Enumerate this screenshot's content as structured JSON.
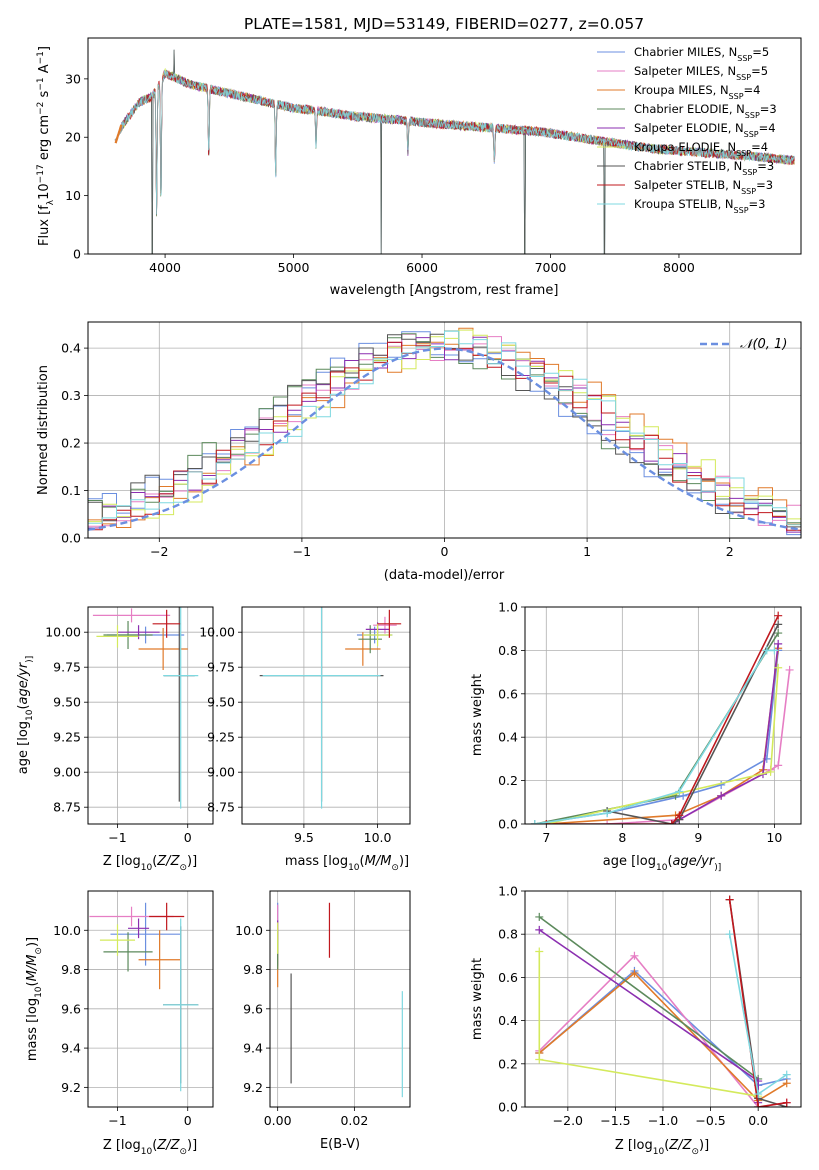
{
  "colors": {
    "chabrier_miles": "#6b8fe0",
    "salpeter_miles": "#e67ec4",
    "kroupa_miles": "#e07a2a",
    "chabrier_elodie": "#5c8a5c",
    "salpeter_elodie": "#8b2fb0",
    "kroupa_elodie": "#d4ea5c",
    "chabrier_stelib": "#555555",
    "salpeter_stelib": "#c0181e",
    "kroupa_stelib": "#7fd8e0",
    "gauss": "#6b8fe0"
  },
  "chart_data": [
    {
      "id": "spectrum",
      "type": "line",
      "title": "PLATE=1581, MJD=53149, FIBERID=0277, z=0.057",
      "xlabel": "wavelength [Angstrom, rest frame]",
      "ylabel_parts": [
        "Flux [f",
        "λ",
        "10",
        "−17",
        " erg cm",
        "−2",
        " s",
        "−1",
        " A",
        "−1",
        "]"
      ],
      "xlim": [
        3400,
        8950
      ],
      "ylim": [
        0,
        37
      ],
      "xticks": [
        "4000",
        "5000",
        "6000",
        "7000",
        "8000"
      ],
      "yticks": [
        "0",
        "10",
        "20",
        "30"
      ],
      "continuum": {
        "x": [
          3600,
          3700,
          3800,
          3900,
          4000,
          4100,
          4200,
          4400,
          4600,
          4800,
          5000,
          5200,
          5500,
          5800,
          6000,
          6300,
          6600,
          6900,
          7200,
          7500,
          7800,
          8100,
          8400,
          8700,
          8900
        ],
        "y": [
          20,
          23,
          26,
          27,
          31,
          30,
          29,
          28,
          27,
          26,
          25,
          24.5,
          23.5,
          23,
          22.5,
          22,
          21.5,
          21,
          20,
          19,
          18,
          17.5,
          17,
          16.5,
          16
        ]
      },
      "absorption_dips": [
        [
          3934,
          4
        ],
        [
          3968,
          6
        ],
        [
          4340,
          15
        ],
        [
          4861,
          12
        ],
        [
          5175,
          18
        ],
        [
          5890,
          17
        ],
        [
          6563,
          15
        ]
      ],
      "outlier_spikes": [
        [
          5683,
          0
        ],
        [
          6800,
          0
        ],
        [
          7420,
          0
        ],
        [
          3900,
          0
        ],
        [
          4070,
          35
        ]
      ],
      "legend": [
        {
          "label": "Chabrier MILES, N",
          "sub": "SSP",
          "tail": "=5",
          "color_key": "chabrier_miles"
        },
        {
          "label": "Salpeter MILES, N",
          "sub": "SSP",
          "tail": "=5",
          "color_key": "salpeter_miles"
        },
        {
          "label": "Kroupa MILES, N",
          "sub": "SSP",
          "tail": "=4",
          "color_key": "kroupa_miles"
        },
        {
          "label": "Chabrier ELODIE, N",
          "sub": "SSP",
          "tail": "=3",
          "color_key": "chabrier_elodie"
        },
        {
          "label": "Salpeter ELODIE, N",
          "sub": "SSP",
          "tail": "=4",
          "color_key": "salpeter_elodie"
        },
        {
          "label": "Kroupa ELODIE, N",
          "sub": "SSP",
          "tail": "=4",
          "color_key": "kroupa_elodie"
        },
        {
          "label": "Chabrier STELIB, N",
          "sub": "SSP",
          "tail": "=3",
          "color_key": "chabrier_stelib"
        },
        {
          "label": "Salpeter STELIB, N",
          "sub": "SSP",
          "tail": "=3",
          "color_key": "salpeter_stelib"
        },
        {
          "label": "Kroupa STELIB, N",
          "sub": "SSP",
          "tail": "=3",
          "color_key": "kroupa_stelib"
        }
      ]
    },
    {
      "id": "residuals",
      "type": "line",
      "xlabel": "(data-model)/error",
      "ylabel": "Normed distribution",
      "xlim": [
        -2.5,
        2.5
      ],
      "ylim": [
        0,
        0.455
      ],
      "xticks": [
        -2,
        -1,
        0,
        1,
        2
      ],
      "xtick_labels": [
        "−2",
        "−1",
        "0",
        "1",
        "2"
      ],
      "yticks": [
        0,
        0.1,
        0.2,
        0.3,
        0.4
      ],
      "ytick_labels": [
        "0.0",
        "0.1",
        "0.2",
        "0.3",
        "0.4"
      ],
      "grid": true,
      "bin_width": 0.1,
      "gaussian_legend": "𝒩(0, 1)",
      "gaussian": {
        "mean": 0,
        "sigma": 1
      }
    },
    {
      "id": "age_vs_Z",
      "type": "scatter",
      "xlabel_parts": [
        "Z [log",
        "10",
        "(",
        "Z/Z",
        "⊙",
        ")]"
      ],
      "ylabel_parts": [
        "age  [log",
        "10",
        "(",
        "age/yr",
        ")]"
      ],
      "xlim": [
        -1.42,
        0.36
      ],
      "ylim": [
        8.63,
        10.18
      ],
      "xticks": [
        -1,
        0
      ],
      "xtick_labels": [
        "−1",
        "0"
      ],
      "yticks": [
        8.75,
        9.0,
        9.25,
        9.5,
        9.75,
        10.0
      ],
      "ytick_labels": [
        "8.75",
        "9.00",
        "9.25",
        "9.50",
        "9.75",
        "10.00"
      ],
      "points": [
        {
          "c": "chabrier_miles",
          "x": -0.6,
          "y": 9.98,
          "xe": 0.55,
          "ye": 0.06
        },
        {
          "c": "salpeter_miles",
          "x": -0.8,
          "y": 10.12,
          "xe": 0.55,
          "ye": 0.05
        },
        {
          "c": "kroupa_miles",
          "x": -0.35,
          "y": 9.88,
          "xe": 0.35,
          "ye": 0.15
        },
        {
          "c": "chabrier_elodie",
          "x": -0.85,
          "y": 9.98,
          "xe": 0.35,
          "ye": 0.1
        },
        {
          "c": "salpeter_elodie",
          "x": -0.7,
          "y": 10.0,
          "xe": 0.3,
          "ye": 0.05
        },
        {
          "c": "kroupa_elodie",
          "x": -1.0,
          "y": 9.97,
          "xe": 0.3,
          "ye": 0.08
        },
        {
          "c": "chabrier_stelib",
          "x": -0.12,
          "y": 9.69,
          "xe": 0.22,
          "ye": 0.9
        },
        {
          "c": "salpeter_stelib",
          "x": -0.3,
          "y": 10.06,
          "xe": 0.2,
          "ye": 0.1
        },
        {
          "c": "kroupa_stelib",
          "x": -0.1,
          "y": 9.69,
          "xe": 0.25,
          "ye": 0.95
        }
      ]
    },
    {
      "id": "age_vs_mass",
      "type": "scatter",
      "xlabel_parts": [
        "mass [log",
        "10",
        "(",
        "M/M",
        "⊙",
        ")]"
      ],
      "xlim": [
        9.08,
        10.22
      ],
      "ylim": [
        8.63,
        10.18
      ],
      "xticks": [
        9.5,
        10.0
      ],
      "xtick_labels": [
        "9.5",
        "10.0"
      ],
      "yticks": [
        8.75,
        9.0,
        9.25,
        9.5,
        9.75,
        10.0
      ],
      "ytick_labels": [
        "8.75",
        "9.00",
        "9.25",
        "9.50",
        "9.75",
        "10.00"
      ],
      "points": [
        {
          "c": "chabrier_miles",
          "x": 9.98,
          "y": 9.98,
          "xe": 0.12,
          "ye": 0.06
        },
        {
          "c": "salpeter_miles",
          "x": 10.05,
          "y": 10.05,
          "xe": 0.08,
          "ye": 0.06
        },
        {
          "c": "kroupa_miles",
          "x": 9.9,
          "y": 9.88,
          "xe": 0.12,
          "ye": 0.12
        },
        {
          "c": "chabrier_elodie",
          "x": 9.95,
          "y": 9.95,
          "xe": 0.08,
          "ye": 0.1
        },
        {
          "c": "salpeter_elodie",
          "x": 10.0,
          "y": 10.02,
          "xe": 0.08,
          "ye": 0.05
        },
        {
          "c": "kroupa_elodie",
          "x": 10.0,
          "y": 9.98,
          "xe": 0.1,
          "ye": 0.08
        },
        {
          "c": "chabrier_stelib",
          "x": 9.62,
          "y": 9.69,
          "xe": 0.42,
          "ye": 0.9
        },
        {
          "c": "salpeter_stelib",
          "x": 10.08,
          "y": 10.06,
          "xe": 0.08,
          "ye": 0.1
        },
        {
          "c": "kroupa_stelib",
          "x": 9.62,
          "y": 9.69,
          "xe": 0.4,
          "ye": 0.95
        }
      ]
    },
    {
      "id": "weight_vs_age",
      "type": "line",
      "xlabel_parts": [
        "age  [log",
        "10",
        "(",
        "age/yr",
        ")]"
      ],
      "ylabel": "mass weight",
      "xlim": [
        6.72,
        10.35
      ],
      "ylim": [
        0,
        1
      ],
      "xticks": [
        7,
        8,
        9,
        10
      ],
      "xtick_labels": [
        "7",
        "8",
        "9",
        "10"
      ],
      "yticks": [
        0,
        0.2,
        0.4,
        0.6,
        0.8,
        1.0
      ],
      "ytick_labels": [
        "0.0",
        "0.2",
        "0.4",
        "0.6",
        "0.8",
        "1.0"
      ],
      "grid": true,
      "series": [
        {
          "c": "chabrier_miles",
          "x": [
            6.85,
            7.8,
            8.8,
            9.3,
            9.9,
            10.05
          ],
          "y": [
            0.0,
            0.05,
            0.13,
            0.18,
            0.3,
            0.8
          ]
        },
        {
          "c": "salpeter_miles",
          "x": [
            7.8,
            8.75,
            9.95,
            10.05,
            10.2
          ],
          "y": [
            0.0,
            0.02,
            0.25,
            0.27,
            0.71
          ]
        },
        {
          "c": "kroupa_miles",
          "x": [
            7.0,
            8.7,
            9.3,
            9.85,
            10.05
          ],
          "y": [
            0.0,
            0.04,
            0.13,
            0.25,
            0.81
          ]
        },
        {
          "c": "chabrier_elodie",
          "x": [
            6.85,
            8.7,
            10.05
          ],
          "y": [
            0.0,
            0.13,
            0.88
          ]
        },
        {
          "c": "salpeter_elodie",
          "x": [
            8.7,
            9.3,
            9.85,
            10.05
          ],
          "y": [
            0.01,
            0.13,
            0.23,
            0.83
          ]
        },
        {
          "c": "kroupa_elodie",
          "x": [
            7.0,
            9.95,
            10.05
          ],
          "y": [
            0.0,
            0.24,
            0.72
          ]
        },
        {
          "c": "chabrier_stelib",
          "x": [
            7.8,
            8.65,
            8.75,
            10.05
          ],
          "y": [
            0.06,
            0.0,
            0.02,
            0.92
          ]
        },
        {
          "c": "salpeter_stelib",
          "x": [
            7.0,
            8.65,
            8.75,
            10.05
          ],
          "y": [
            0.0,
            0.0,
            0.04,
            0.96
          ]
        },
        {
          "c": "kroupa_stelib",
          "x": [
            6.85,
            7.8,
            8.75,
            9.9,
            10.0
          ],
          "y": [
            0.0,
            0.05,
            0.15,
            0.8,
            0.8
          ]
        }
      ]
    },
    {
      "id": "mass_vs_Z",
      "type": "scatter",
      "xlabel_parts": [
        "Z [log",
        "10",
        "(",
        "Z/Z",
        "⊙",
        ")]"
      ],
      "ylabel_parts": [
        "mass [log",
        "10",
        "(",
        "M/M",
        "⊙",
        ")]"
      ],
      "xlim": [
        -1.42,
        0.36
      ],
      "ylim": [
        9.1,
        10.2
      ],
      "xticks": [
        -1,
        0
      ],
      "xtick_labels": [
        "−1",
        "0"
      ],
      "yticks": [
        9.2,
        9.4,
        9.6,
        9.8,
        10.0
      ],
      "ytick_labels": [
        "9.2",
        "9.4",
        "9.6",
        "9.8",
        "10.0"
      ],
      "points": [
        {
          "c": "chabrier_miles",
          "x": -0.6,
          "y": 9.98,
          "xe": 0.5,
          "ye": 0.16
        },
        {
          "c": "salpeter_miles",
          "x": -0.8,
          "y": 10.07,
          "xe": 0.6,
          "ye": 0.05
        },
        {
          "c": "kroupa_miles",
          "x": -0.4,
          "y": 9.85,
          "xe": 0.3,
          "ye": 0.15
        },
        {
          "c": "chabrier_elodie",
          "x": -0.85,
          "y": 9.89,
          "xe": 0.35,
          "ye": 0.1
        },
        {
          "c": "salpeter_elodie",
          "x": -0.7,
          "y": 10.01,
          "xe": 0.15,
          "ye": 0.05
        },
        {
          "c": "kroupa_elodie",
          "x": -1.0,
          "y": 9.95,
          "xe": 0.25,
          "ye": 0.08
        },
        {
          "c": "chabrier_stelib",
          "x": -0.1,
          "y": 9.62,
          "xe": 0.25,
          "ye": 0.4
        },
        {
          "c": "salpeter_stelib",
          "x": -0.3,
          "y": 10.07,
          "xe": 0.25,
          "ye": 0.07
        },
        {
          "c": "kroupa_stelib",
          "x": -0.1,
          "y": 9.62,
          "xe": 0.25,
          "ye": 0.44
        }
      ]
    },
    {
      "id": "mass_vs_ebv",
      "type": "scatter",
      "xlabel": "E(B-V)",
      "xlim": [
        -0.002,
        0.0345
      ],
      "ylim": [
        9.1,
        10.2
      ],
      "xticks": [
        0.0,
        0.02
      ],
      "xtick_labels": [
        "0.00",
        "0.02"
      ],
      "yticks": [
        9.2,
        9.4,
        9.6,
        9.8,
        10.0
      ],
      "ytick_labels": [
        "9.2",
        "9.4",
        "9.6",
        "9.8",
        "10.0"
      ],
      "points": [
        {
          "c": "chabrier_miles",
          "x": 0.0,
          "y": 9.98,
          "xe": 0,
          "ye": 0.16
        },
        {
          "c": "salpeter_miles",
          "x": 0.0,
          "y": 10.05,
          "xe": 0,
          "ye": 0.08
        },
        {
          "c": "kroupa_miles",
          "x": 0.0,
          "y": 9.86,
          "xe": 0,
          "ye": 0.15
        },
        {
          "c": "chabrier_elodie",
          "x": 0.0,
          "y": 9.9,
          "xe": 0,
          "ye": 0.1
        },
        {
          "c": "salpeter_elodie",
          "x": 0.0,
          "y": 10.0,
          "xe": 0,
          "ye": 0.05
        },
        {
          "c": "kroupa_elodie",
          "x": 0.0,
          "y": 9.96,
          "xe": 0,
          "ye": 0.08
        },
        {
          "c": "chabrier_stelib",
          "x": 0.0035,
          "y": 9.5,
          "xe": 0,
          "ye": 0.28
        },
        {
          "c": "salpeter_stelib",
          "x": 0.0135,
          "y": 10.0,
          "xe": 0,
          "ye": 0.14
        },
        {
          "c": "kroupa_stelib",
          "x": 0.0325,
          "y": 9.42,
          "xe": 0,
          "ye": 0.27
        }
      ]
    },
    {
      "id": "weight_vs_Z",
      "type": "line",
      "xlabel_parts": [
        "Z [log",
        "10",
        "(",
        "Z/Z",
        "⊙",
        ")]"
      ],
      "ylabel": "mass weight",
      "xlim": [
        -2.45,
        0.45
      ],
      "ylim": [
        0,
        1
      ],
      "xticks": [
        -2.0,
        -1.5,
        -1.0,
        -0.5,
        0.0
      ],
      "xtick_labels": [
        "−2.0",
        "−1.5",
        "−1.0",
        "−0.5",
        "0.0"
      ],
      "yticks": [
        0,
        0.2,
        0.4,
        0.6,
        0.8,
        1.0
      ],
      "ytick_labels": [
        "0.0",
        "0.2",
        "0.4",
        "0.6",
        "0.8",
        "1.0"
      ],
      "grid": true,
      "series": [
        {
          "c": "chabrier_miles",
          "x": [
            -2.3,
            -1.3,
            0.0,
            0.3
          ],
          "y": [
            0.25,
            0.63,
            0.1,
            0.13
          ]
        },
        {
          "c": "salpeter_miles",
          "x": [
            -2.3,
            -1.3,
            0.0,
            0.3
          ],
          "y": [
            0.26,
            0.7,
            0.0,
            0.02
          ]
        },
        {
          "c": "kroupa_miles",
          "x": [
            -2.3,
            -1.3,
            0.0,
            0.3
          ],
          "y": [
            0.25,
            0.62,
            0.03,
            0.11
          ]
        },
        {
          "c": "chabrier_elodie",
          "x": [
            -2.3,
            0.0,
            0.0
          ],
          "y": [
            0.88,
            0.13,
            0.0
          ]
        },
        {
          "c": "salpeter_elodie",
          "x": [
            -2.3,
            0.0,
            0.0
          ],
          "y": [
            0.82,
            0.12,
            0.02
          ]
        },
        {
          "c": "kroupa_elodie",
          "x": [
            -2.3,
            -2.3,
            0.0
          ],
          "y": [
            0.72,
            0.22,
            0.05
          ]
        },
        {
          "c": "chabrier_stelib",
          "x": [
            -0.3,
            0.0,
            0.3
          ],
          "y": [
            0.96,
            0.04,
            0.0
          ]
        },
        {
          "c": "salpeter_stelib",
          "x": [
            -0.3,
            0.0,
            0.3
          ],
          "y": [
            0.96,
            0.0,
            0.02
          ]
        },
        {
          "c": "kroupa_stelib",
          "x": [
            -0.3,
            0.0,
            0.3
          ],
          "y": [
            0.8,
            0.06,
            0.15
          ]
        }
      ]
    }
  ]
}
